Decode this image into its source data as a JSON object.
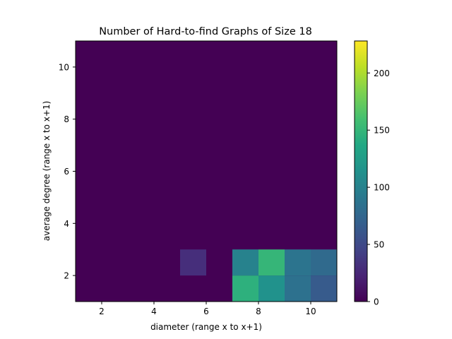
{
  "chart_data": {
    "type": "heatmap",
    "title": "Number of Hard-to-find Graphs of Size 18",
    "xlabel": "diameter (range x to x+1)",
    "ylabel": "average degree (range x to x+1)",
    "xlim": [
      1,
      11
    ],
    "ylim": [
      1,
      11
    ],
    "x_ticks": [
      "2",
      "4",
      "6",
      "8",
      "10"
    ],
    "x_tick_values": [
      2,
      4,
      6,
      8,
      10
    ],
    "y_ticks": [
      "2",
      "4",
      "6",
      "8",
      "10"
    ],
    "y_tick_values": [
      2,
      4,
      6,
      8,
      10
    ],
    "colormap": "viridis",
    "color_range": [
      0,
      228
    ],
    "colorbar_ticks": [
      "0",
      "50",
      "100",
      "150",
      "200"
    ],
    "colorbar_tick_values": [
      0,
      50,
      100,
      150,
      200
    ],
    "background_value": 0,
    "cells": [
      {
        "x": 5,
        "y": 2,
        "value": 30
      },
      {
        "x": 7,
        "y": 1,
        "value": 145
      },
      {
        "x": 7,
        "y": 2,
        "value": 100
      },
      {
        "x": 8,
        "y": 1,
        "value": 115
      },
      {
        "x": 8,
        "y": 2,
        "value": 150
      },
      {
        "x": 9,
        "y": 1,
        "value": 85
      },
      {
        "x": 9,
        "y": 2,
        "value": 88
      },
      {
        "x": 10,
        "y": 1,
        "value": 65
      },
      {
        "x": 10,
        "y": 2,
        "value": 78
      }
    ]
  }
}
